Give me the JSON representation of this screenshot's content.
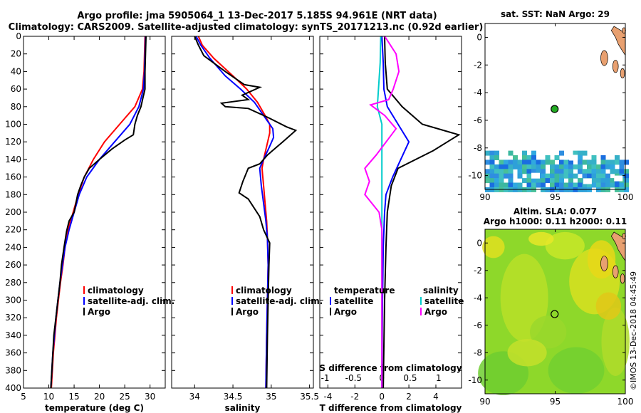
{
  "title_line1": "Argo profile: jma 5905064_1 13-Dec-2017 5.185S 94.961E (NRT data)",
  "title_line2": "Climatology: CARS2009. Satellite-adjusted climatology: synTS_20171213.nc (0.92d earlier)",
  "colors": {
    "climatology": "#ff0000",
    "satellite": "#0000ff",
    "argo": "#000000",
    "t_diff_satellite": "#00cccc",
    "s_diff_climatology": "#ff00ff",
    "map_land": "#e8a070"
  },
  "chart_data": [
    {
      "id": "temperature",
      "type": "line",
      "xlabel": "temperature (deg C)",
      "ylabel": "depth",
      "xlim": [
        5,
        33
      ],
      "ylim": [
        0,
        400
      ],
      "xticks": [
        5,
        10,
        15,
        20,
        25,
        30
      ],
      "yticks": [
        0,
        20,
        40,
        60,
        80,
        100,
        120,
        140,
        160,
        180,
        200,
        220,
        240,
        260,
        280,
        300,
        320,
        340,
        360,
        380,
        400
      ],
      "legend": [
        "climatology",
        "satellite-adj. clim.",
        "Argo"
      ],
      "series": [
        {
          "name": "climatology",
          "color": "#ff0000",
          "points": [
            [
              29.0,
              0
            ],
            [
              28.9,
              20
            ],
            [
              28.8,
              40
            ],
            [
              28.5,
              60
            ],
            [
              27.0,
              80
            ],
            [
              24.0,
              100
            ],
            [
              21.0,
              120
            ],
            [
              18.8,
              140
            ],
            [
              17.0,
              160
            ],
            [
              15.8,
              180
            ],
            [
              14.8,
              200
            ],
            [
              13.8,
              220
            ],
            [
              13.2,
              240
            ],
            [
              12.8,
              260
            ],
            [
              12.3,
              280
            ],
            [
              11.9,
              300
            ],
            [
              11.5,
              320
            ],
            [
              11.2,
              340
            ],
            [
              10.9,
              360
            ],
            [
              10.7,
              380
            ],
            [
              10.5,
              400
            ]
          ]
        },
        {
          "name": "satellite-adj. clim.",
          "color": "#0000ff",
          "points": [
            [
              29.1,
              0
            ],
            [
              29.0,
              20
            ],
            [
              28.9,
              40
            ],
            [
              28.7,
              60
            ],
            [
              27.8,
              80
            ],
            [
              26.0,
              100
            ],
            [
              23.0,
              120
            ],
            [
              20.0,
              140
            ],
            [
              17.5,
              160
            ],
            [
              16.0,
              180
            ],
            [
              15.0,
              200
            ],
            [
              14.0,
              220
            ],
            [
              13.2,
              240
            ],
            [
              12.7,
              260
            ],
            [
              12.2,
              280
            ],
            [
              11.8,
              300
            ],
            [
              11.4,
              320
            ],
            [
              11.1,
              340
            ],
            [
              10.8,
              360
            ],
            [
              10.6,
              380
            ],
            [
              10.4,
              400
            ]
          ]
        },
        {
          "name": "Argo",
          "color": "#000000",
          "points": [
            [
              29.2,
              0
            ],
            [
              29.1,
              20
            ],
            [
              29.0,
              40
            ],
            [
              29.0,
              60
            ],
            [
              28.6,
              70
            ],
            [
              28.2,
              80
            ],
            [
              27.5,
              90
            ],
            [
              27.0,
              100
            ],
            [
              26.7,
              112
            ],
            [
              25.0,
              118
            ],
            [
              22.5,
              128
            ],
            [
              20.0,
              140
            ],
            [
              18.0,
              150
            ],
            [
              17.0,
              160
            ],
            [
              16.3,
              170
            ],
            [
              15.7,
              180
            ],
            [
              15.0,
              200
            ],
            [
              14.0,
              210
            ],
            [
              13.5,
              222
            ],
            [
              13.0,
              240
            ],
            [
              12.5,
              260
            ],
            [
              12.2,
              280
            ],
            [
              11.8,
              300
            ],
            [
              11.4,
              320
            ],
            [
              11.0,
              340
            ],
            [
              10.8,
              360
            ],
            [
              10.6,
              380
            ],
            [
              10.4,
              400
            ]
          ]
        }
      ]
    },
    {
      "id": "salinity",
      "type": "line",
      "xlabel": "salinity",
      "ylabel": "depth",
      "xlim": [
        33.7,
        35.55
      ],
      "ylim": [
        0,
        400
      ],
      "xticks": [
        34,
        34.5,
        35,
        35.5
      ],
      "yticks": [
        0,
        20,
        40,
        60,
        80,
        100,
        120,
        140,
        160,
        180,
        200,
        220,
        240,
        260,
        280,
        300,
        320,
        340,
        360,
        380,
        400
      ],
      "legend": [
        "climatology",
        "satellite-adj. clim.",
        "Argo"
      ],
      "series": [
        {
          "name": "climatology",
          "color": "#ff0000",
          "points": [
            [
              34.05,
              0
            ],
            [
              34.1,
              10
            ],
            [
              34.25,
              25
            ],
            [
              34.5,
              45
            ],
            [
              34.68,
              60
            ],
            [
              34.82,
              75
            ],
            [
              34.92,
              90
            ],
            [
              34.98,
              100
            ],
            [
              34.98,
              110
            ],
            [
              34.94,
              125
            ],
            [
              34.9,
              140
            ],
            [
              34.88,
              150
            ],
            [
              34.9,
              170
            ],
            [
              34.92,
              190
            ],
            [
              34.94,
              210
            ],
            [
              34.95,
              230
            ],
            [
              34.96,
              260
            ],
            [
              34.95,
              300
            ],
            [
              34.94,
              340
            ],
            [
              34.93,
              400
            ]
          ]
        },
        {
          "name": "satellite-adj. clim.",
          "color": "#0000ff",
          "points": [
            [
              34.02,
              0
            ],
            [
              34.08,
              10
            ],
            [
              34.2,
              25
            ],
            [
              34.4,
              45
            ],
            [
              34.6,
              60
            ],
            [
              34.78,
              75
            ],
            [
              34.9,
              90
            ],
            [
              35.02,
              105
            ],
            [
              35.03,
              115
            ],
            [
              34.98,
              125
            ],
            [
              34.9,
              140
            ],
            [
              34.85,
              150
            ],
            [
              34.87,
              170
            ],
            [
              34.9,
              190
            ],
            [
              34.93,
              210
            ],
            [
              34.95,
              230
            ],
            [
              34.96,
              260
            ],
            [
              34.95,
              300
            ],
            [
              34.94,
              340
            ],
            [
              34.93,
              400
            ]
          ]
        },
        {
          "name": "Argo",
          "color": "#000000",
          "points": [
            [
              34.0,
              0
            ],
            [
              34.05,
              10
            ],
            [
              34.12,
              22
            ],
            [
              34.4,
              40
            ],
            [
              34.65,
              55
            ],
            [
              34.85,
              58
            ],
            [
              34.62,
              67
            ],
            [
              34.7,
              72
            ],
            [
              34.35,
              76
            ],
            [
              34.4,
              80
            ],
            [
              34.7,
              82
            ],
            [
              34.95,
              92
            ],
            [
              35.2,
              103
            ],
            [
              35.32,
              107
            ],
            [
              35.15,
              120
            ],
            [
              34.95,
              135
            ],
            [
              34.85,
              145
            ],
            [
              34.7,
              150
            ],
            [
              34.63,
              165
            ],
            [
              34.58,
              178
            ],
            [
              34.7,
              185
            ],
            [
              34.85,
              205
            ],
            [
              34.9,
              220
            ],
            [
              34.98,
              235
            ],
            [
              34.97,
              260
            ],
            [
              34.96,
              300
            ],
            [
              34.95,
              340
            ],
            [
              34.94,
              400
            ]
          ]
        }
      ]
    },
    {
      "id": "differences",
      "type": "line",
      "xlabel": "T difference from climatology",
      "xlabel_top": "S difference from climatology",
      "xlim": [
        -4.6,
        5.9
      ],
      "ylim": [
        0,
        400
      ],
      "xticks": [
        -4,
        -2,
        0,
        2,
        4
      ],
      "xticks_top": [
        -1,
        -0.5,
        0,
        0.5,
        1
      ],
      "yticks": [
        0,
        20,
        40,
        60,
        80,
        100,
        120,
        140,
        160,
        180,
        200,
        220,
        240,
        260,
        280,
        300,
        320,
        340,
        360,
        380,
        400
      ],
      "legend_temperature_title": "temperature",
      "legend_salinity_title": "salinity",
      "legend_temperature": [
        "satellite",
        "Argo"
      ],
      "legend_salinity": [
        "satellite",
        "Argo"
      ],
      "series": [
        {
          "name": "T satellite - clim",
          "color": "#0000ff",
          "points": [
            [
              0,
              0
            ],
            [
              0.1,
              30
            ],
            [
              0.15,
              60
            ],
            [
              0.4,
              80
            ],
            [
              1.2,
              100
            ],
            [
              2.0,
              120
            ],
            [
              1.4,
              140
            ],
            [
              0.8,
              160
            ],
            [
              0.3,
              180
            ],
            [
              0.2,
              200
            ],
            [
              0.1,
              240
            ],
            [
              0.05,
              300
            ],
            [
              0,
              400
            ]
          ]
        },
        {
          "name": "T Argo - clim",
          "color": "#000000",
          "points": [
            [
              0.2,
              0
            ],
            [
              0.25,
              30
            ],
            [
              0.4,
              60
            ],
            [
              1.5,
              80
            ],
            [
              3.0,
              100
            ],
            [
              5.7,
              112
            ],
            [
              3.8,
              130
            ],
            [
              1.2,
              150
            ],
            [
              0.7,
              170
            ],
            [
              0.4,
              200
            ],
            [
              0.3,
              240
            ],
            [
              0.2,
              300
            ],
            [
              0.1,
              400
            ]
          ]
        },
        {
          "name": "S satellite - clim",
          "color": "#00cccc",
          "points": [
            [
              -0.02,
              0
            ],
            [
              -0.03,
              30
            ],
            [
              -0.06,
              60
            ],
            [
              -0.08,
              80
            ],
            [
              0.0,
              100
            ],
            [
              0.0,
              130
            ],
            [
              0.0,
              160
            ],
            [
              0.0,
              200
            ],
            [
              0.0,
              240
            ],
            [
              0.0,
              300
            ],
            [
              0.0,
              400
            ]
          ]
        },
        {
          "name": "S Argo - clim",
          "color": "#ff00ff",
          "points": [
            [
              0.05,
              0
            ],
            [
              0.25,
              20
            ],
            [
              0.3,
              40
            ],
            [
              0.2,
              60
            ],
            [
              0.12,
              72
            ],
            [
              -0.2,
              78
            ],
            [
              0.05,
              90
            ],
            [
              0.25,
              105
            ],
            [
              0.1,
              118
            ],
            [
              -0.1,
              135
            ],
            [
              -0.3,
              150
            ],
            [
              -0.22,
              165
            ],
            [
              -0.3,
              180
            ],
            [
              -0.05,
              200
            ],
            [
              0.0,
              220
            ],
            [
              0.0,
              260
            ],
            [
              0.0,
              300
            ],
            [
              0.0,
              400
            ]
          ]
        }
      ]
    },
    {
      "id": "sst_map",
      "type": "heatmap",
      "title": "sat. SST: NaN Argo: 29",
      "xlim": [
        90,
        100
      ],
      "ylim": [
        -11,
        1
      ],
      "xticks": [
        90,
        95,
        100
      ],
      "yticks": [
        0,
        -2,
        -4,
        -6,
        -8,
        -10
      ],
      "argo_position": [
        94.961,
        -5.185
      ]
    },
    {
      "id": "sla_map",
      "type": "heatmap",
      "title": "Altim. SLA: 0.077",
      "subtitle": "Argo h1000: 0.11 h2000: 0.11",
      "xlim": [
        90,
        100
      ],
      "ylim": [
        -11,
        1
      ],
      "xticks": [
        90,
        95,
        100
      ],
      "yticks": [
        0,
        -2,
        -4,
        -6,
        -8,
        -10
      ],
      "argo_position": [
        94.961,
        -5.185
      ]
    }
  ],
  "credit": "©IMOS 13-Dec-2018 04:45:49"
}
